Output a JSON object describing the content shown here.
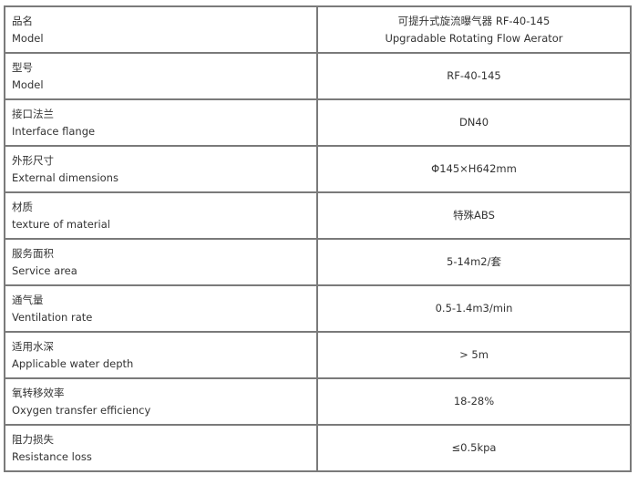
{
  "rows": [
    {
      "label_zh": "品名",
      "label_en": "Model",
      "value": "可提升式旋流曝气器 RF-40-145",
      "value2": "Upgradable Rotating Flow Aerator"
    },
    {
      "label_zh": "型号",
      "label_en": "Model",
      "value": "RF-40-145"
    },
    {
      "label_zh": "接口法兰",
      "label_en": "Interface flange",
      "value": "DN40"
    },
    {
      "label_zh": "外形尺寸",
      "label_en": "External dimensions",
      "value": "Φ145×H642mm"
    },
    {
      "label_zh": "材质",
      "label_en": "texture of material",
      "value": "特殊ABS"
    },
    {
      "label_zh": "服务面积",
      "label_en": "Service area",
      "value": "5-14m2/套"
    },
    {
      "label_zh": "通气量",
      "label_en": "Ventilation rate",
      "value": "0.5-1.4m3/min"
    },
    {
      "label_zh": "适用水深",
      "label_en": "Applicable water depth",
      "value": "> 5m"
    },
    {
      "label_zh": "氧转移效率",
      "label_en": "Oxygen transfer efficiency",
      "value": "18-28%"
    },
    {
      "label_zh": "阻力损失",
      "label_en": "Resistance loss",
      "value": "≤0.5kpa"
    }
  ]
}
